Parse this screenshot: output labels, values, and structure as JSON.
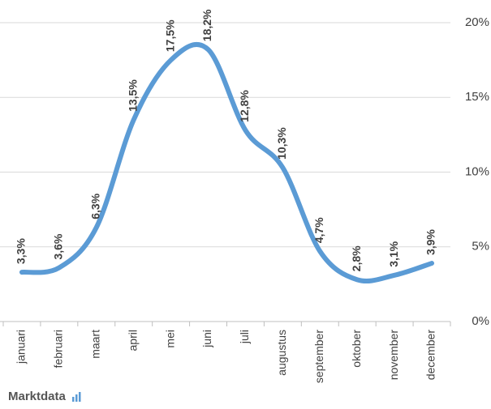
{
  "chart_data": {
    "type": "line",
    "categories": [
      "januari",
      "februari",
      "maart",
      "april",
      "mei",
      "juni",
      "juli",
      "augustus",
      "september",
      "oktober",
      "november",
      "december"
    ],
    "values": [
      3.3,
      3.6,
      6.3,
      13.5,
      17.5,
      18.2,
      12.8,
      10.3,
      4.7,
      2.8,
      3.1,
      3.9
    ],
    "value_labels": [
      "3,3%",
      "3,6%",
      "6,3%",
      "13,5%",
      "17,5%",
      "18,2%",
      "12,8%",
      "10,3%",
      "4,7%",
      "2,8%",
      "3,1%",
      "3,9%"
    ],
    "color": "#5b9bd5",
    "ylim": [
      0,
      20
    ],
    "yticks": [
      {
        "value": 0,
        "label": "0%"
      },
      {
        "value": 5,
        "label": "5%"
      },
      {
        "value": 10,
        "label": "10%"
      },
      {
        "value": 15,
        "label": "15%"
      },
      {
        "value": 20,
        "label": "20%"
      }
    ],
    "grid": true,
    "brand": "Marktdata"
  }
}
